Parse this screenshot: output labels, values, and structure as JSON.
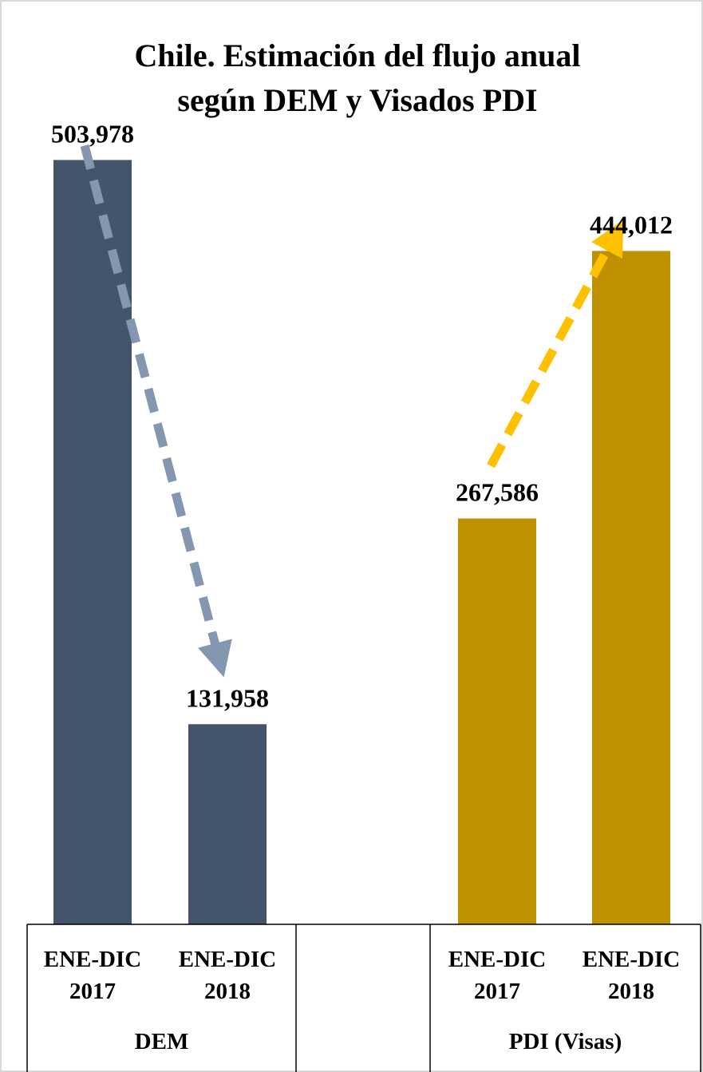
{
  "chart_data": {
    "type": "bar",
    "title": [
      "Chile. Estimación del flujo anual",
      "según DEM y Visados PDI"
    ],
    "xlabel": "",
    "ylabel": "",
    "ylim": [
      0,
      520000
    ],
    "grid": false,
    "groups": [
      {
        "name": "DEM",
        "color": "#44546a",
        "bars": [
          {
            "category": [
              "ENE-DIC",
              "2017"
            ],
            "value": 503978,
            "label": "503,978"
          },
          {
            "category": [
              "ENE-DIC",
              "2018"
            ],
            "value": 131958,
            "label": "131,958"
          }
        ],
        "trend_arrow_color": "#8497b0"
      },
      {
        "name": "PDI (Visas)",
        "color": "#bf9000",
        "bars": [
          {
            "category": [
              "ENE-DIC",
              "2017"
            ],
            "value": 267586,
            "label": "267,586"
          },
          {
            "category": [
              "ENE-DIC",
              "2018"
            ],
            "value": 444012,
            "label": "444,012"
          }
        ],
        "trend_arrow_color": "#ffc000"
      }
    ]
  }
}
